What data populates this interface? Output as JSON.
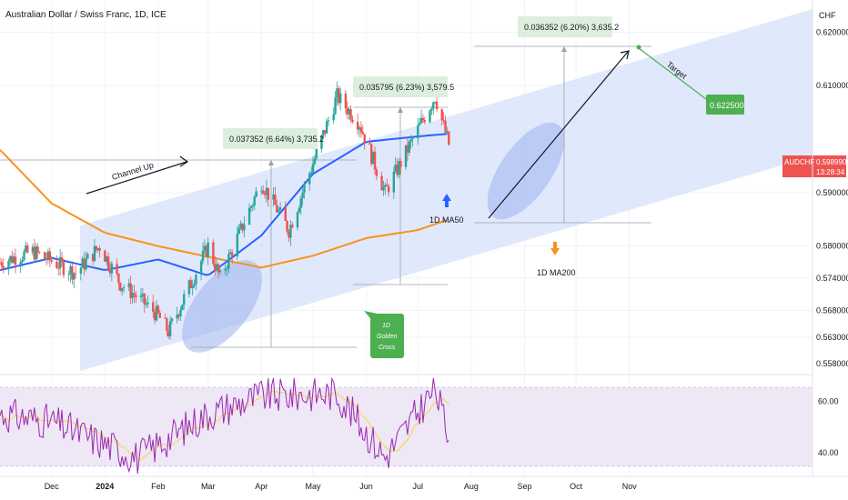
{
  "header": {
    "title": "Australian Dollar / Swiss Franc, 1D, ICE",
    "currency": "CHF"
  },
  "price_badge": {
    "symbol": "AUDCHF",
    "price": "0.598990",
    "countdown": "13:28:34"
  },
  "colors": {
    "up": "#26a69a",
    "down": "#ef5350",
    "ma50": "#2962ff",
    "ma200": "#f7931a",
    "channel": "#d8e2fb",
    "rsi_band": "#ede7f6",
    "rsi_line": "#9c27b0",
    "rsi_ma": "#f5d742",
    "green_box": "#4caf50",
    "anno_box": "#dcefdc"
  },
  "price_axis": [
    "0.620000",
    "0.610000",
    "0.598990",
    "0.590000",
    "0.580000",
    "0.574000",
    "0.568000",
    "0.563000",
    "0.558000"
  ],
  "rsi_axis": [
    "60.00",
    "40.00"
  ],
  "time_axis": [
    "Dec",
    "2024",
    "Feb",
    "Mar",
    "Apr",
    "May",
    "Jun",
    "Jul",
    "Aug",
    "Sep",
    "Oct",
    "Nov"
  ],
  "annotations": {
    "channel_label": "Channel Up",
    "box1": "0.037352 (6.64%) 3,735.2",
    "box2": "0.035795 (6.23%) 3,579.5",
    "box3": "0.036352 (6.20%) 3,635.2",
    "target_label": "Target",
    "target_value": "0.622500",
    "ma50_label": "1D MA50",
    "ma200_label": "1D MA200",
    "golden_cross": [
      "1D",
      "Golden",
      "Cross"
    ]
  },
  "chart_data": {
    "type": "candlestick",
    "title": "Australian Dollar / Swiss Franc, 1D, ICE",
    "ylim": [
      0.556,
      0.626
    ],
    "overlays": [
      "1D MA50",
      "1D MA200"
    ],
    "pivots": [
      [
        "Nov 1",
        0.577
      ],
      [
        "Nov 20",
        0.579
      ],
      [
        "Dec 15",
        0.575
      ],
      [
        "Dec 29",
        0.58
      ],
      [
        "Jan 10",
        0.573
      ],
      [
        "Jan 18",
        0.571
      ],
      [
        "Feb 1",
        0.567
      ],
      [
        "Feb 7",
        0.564
      ],
      [
        "Mar 1",
        0.58
      ],
      [
        "Mar 8",
        0.574
      ],
      [
        "Apr 1",
        0.592
      ],
      [
        "Apr 17",
        0.583
      ],
      [
        "May 15",
        0.608
      ],
      [
        "May 28",
        0.603
      ],
      [
        "Jun 12",
        0.59
      ],
      [
        "Jul 11",
        0.608
      ],
      [
        "Jul 19",
        0.599
      ]
    ],
    "ma50": [
      [
        "Nov 1",
        0.5755
      ],
      [
        "Dec 1",
        0.5778
      ],
      [
        "Jan 1",
        0.5755
      ],
      [
        "Feb 1",
        0.5775
      ],
      [
        "Mar 1",
        0.5745
      ],
      [
        "Apr 1",
        0.582
      ],
      [
        "May 1",
        0.5935
      ],
      [
        "Jun 1",
        0.5995
      ],
      [
        "Jul 1",
        0.6005
      ],
      [
        "Jul 19",
        0.601
      ]
    ],
    "ma200": [
      [
        "Nov 1",
        0.598
      ],
      [
        "Dec 1",
        0.588
      ],
      [
        "Jan 1",
        0.5825
      ],
      [
        "Feb 1",
        0.58
      ],
      [
        "Mar 1",
        0.578
      ],
      [
        "Apr 1",
        0.576
      ],
      [
        "May 1",
        0.5782
      ],
      [
        "Jun 1",
        0.5815
      ],
      [
        "Jul 1",
        0.583
      ],
      [
        "Jul 19",
        0.585
      ]
    ],
    "measurements": [
      {
        "label": "0.037352 (6.64%) 3,735.2"
      },
      {
        "label": "0.035795 (6.23%) 3,579.5"
      },
      {
        "label": "0.036352 (6.20%) 3,635.2"
      }
    ],
    "target": 0.6225,
    "rsi": {
      "levels": [
        "60.00",
        "40.00"
      ],
      "pivots": [
        [
          "Nov 1",
          55
        ],
        [
          "Dec 1",
          52
        ],
        [
          "Jan 20",
          38
        ],
        [
          "Mar 1",
          55
        ],
        [
          "Apr 1",
          62
        ],
        [
          "May 15",
          63
        ],
        [
          "Jun 12",
          38
        ],
        [
          "Jul 11",
          65
        ],
        [
          "Jul 19",
          46
        ]
      ]
    }
  }
}
